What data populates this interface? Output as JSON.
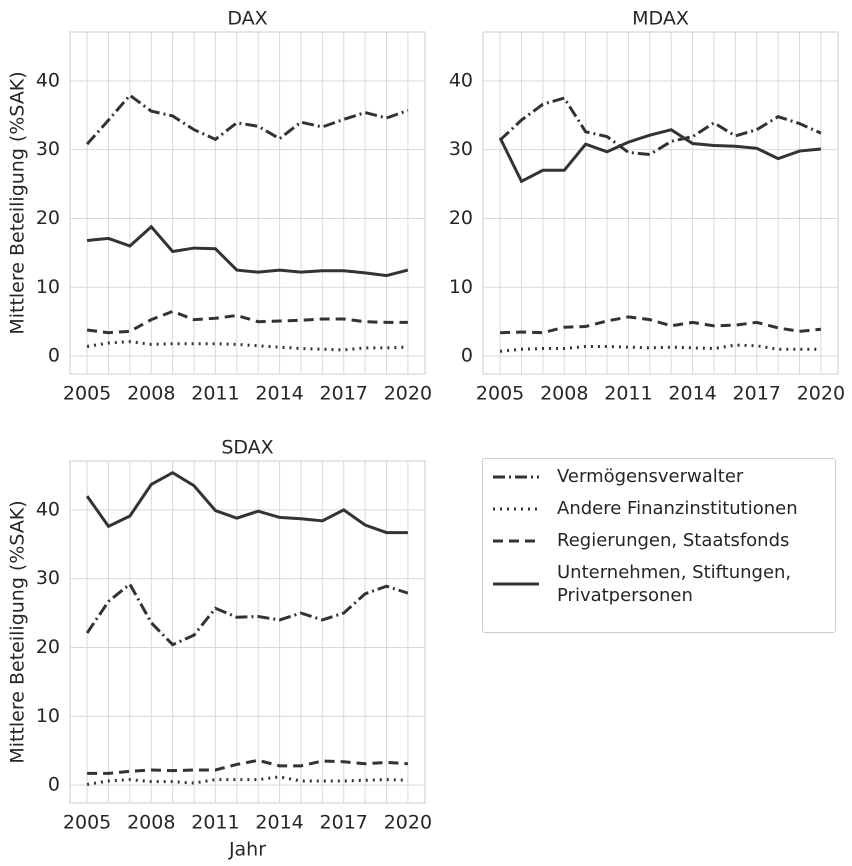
{
  "chart_data": [
    {
      "type": "line",
      "title": "DAX",
      "ylabel": "Mittlere Beteiligung (%SAK)",
      "x": [
        2005,
        2006,
        2007,
        2008,
        2009,
        2010,
        2011,
        2012,
        2013,
        2014,
        2015,
        2016,
        2017,
        2018,
        2019,
        2020
      ],
      "series": [
        {
          "name": "Vermögensverwalter",
          "color": "#333333",
          "dash": "dashdot",
          "values": [
            30.8,
            34.3,
            37.9,
            35.6,
            34.9,
            32.9,
            31.5,
            33.9,
            33.4,
            31.6,
            34.0,
            33.3,
            34.4,
            35.4,
            34.6,
            35.7
          ]
        },
        {
          "name": "Andere Finanzinstitutionen",
          "color": "#333333",
          "dash": "dotted",
          "values": [
            1.4,
            1.9,
            2.1,
            1.7,
            1.8,
            1.8,
            1.8,
            1.7,
            1.5,
            1.3,
            1.1,
            1.0,
            0.9,
            1.2,
            1.2,
            1.3
          ]
        },
        {
          "name": "Regierungen, Staatsfonds",
          "color": "#333333",
          "dash": "dashed",
          "values": [
            3.8,
            3.4,
            3.6,
            5.3,
            6.5,
            5.3,
            5.5,
            5.9,
            5.0,
            5.1,
            5.2,
            5.4,
            5.4,
            5.0,
            4.9,
            4.9
          ]
        },
        {
          "name": "Unternehmen, Stiftungen, Privatpersonen",
          "color": "#333333",
          "dash": "solid",
          "values": [
            16.8,
            17.1,
            16.0,
            18.8,
            15.2,
            15.7,
            15.6,
            12.5,
            12.2,
            12.5,
            12.2,
            12.4,
            12.4,
            12.1,
            11.7,
            12.5
          ]
        }
      ],
      "xlim": [
        2004.2,
        2020.8
      ],
      "ylim": [
        -2.6,
        47.1
      ],
      "xticks": [
        2005,
        2008,
        2011,
        2014,
        2017,
        2020
      ],
      "yticks": [
        0,
        10,
        20,
        30,
        40
      ],
      "grid": true
    },
    {
      "type": "line",
      "title": "MDAX",
      "x": [
        2005,
        2006,
        2007,
        2008,
        2009,
        2010,
        2011,
        2012,
        2013,
        2014,
        2015,
        2016,
        2017,
        2018,
        2019,
        2020
      ],
      "series": [
        {
          "color": "#333333",
          "dash": "dashdot",
          "values": [
            31.4,
            34.3,
            36.6,
            37.5,
            32.6,
            31.9,
            29.6,
            29.3,
            31.2,
            31.9,
            33.9,
            32.0,
            32.9,
            34.8,
            33.8,
            32.4
          ]
        },
        {
          "color": "#333333",
          "dash": "dotted",
          "values": [
            0.7,
            1.0,
            1.1,
            1.1,
            1.4,
            1.4,
            1.3,
            1.2,
            1.3,
            1.2,
            1.1,
            1.6,
            1.5,
            1.0,
            1.0,
            1.0
          ]
        },
        {
          "color": "#333333",
          "dash": "dashed",
          "values": [
            3.4,
            3.5,
            3.4,
            4.2,
            4.3,
            5.1,
            5.7,
            5.3,
            4.4,
            4.9,
            4.4,
            4.5,
            4.9,
            4.1,
            3.6,
            3.9
          ]
        },
        {
          "color": "#333333",
          "dash": "solid",
          "values": [
            31.7,
            25.4,
            27.0,
            27.0,
            30.8,
            29.7,
            31.1,
            32.1,
            32.9,
            30.9,
            30.6,
            30.5,
            30.2,
            28.7,
            29.8,
            30.1
          ]
        }
      ],
      "xlim": [
        2004.2,
        2020.8
      ],
      "ylim": [
        -2.6,
        47.1
      ],
      "xticks": [
        2005,
        2008,
        2011,
        2014,
        2017,
        2020
      ],
      "yticks": [
        0,
        10,
        20,
        30,
        40
      ],
      "grid": true
    },
    {
      "type": "line",
      "title": "SDAX",
      "ylabel": "Mittlere Beteiligung (%SAK)",
      "xlabel": "Jahr",
      "x": [
        2005,
        2006,
        2007,
        2008,
        2009,
        2010,
        2011,
        2012,
        2013,
        2014,
        2015,
        2016,
        2017,
        2018,
        2019,
        2020
      ],
      "series": [
        {
          "color": "#333333",
          "dash": "dashdot",
          "values": [
            22.1,
            26.7,
            29.2,
            23.6,
            20.4,
            21.8,
            25.7,
            24.4,
            24.5,
            24.0,
            25.0,
            24.0,
            25.0,
            27.8,
            28.9,
            27.9
          ]
        },
        {
          "color": "#333333",
          "dash": "dotted",
          "values": [
            0.1,
            0.6,
            0.8,
            0.5,
            0.5,
            0.3,
            0.8,
            0.8,
            0.8,
            1.2,
            0.6,
            0.6,
            0.6,
            0.7,
            0.8,
            0.7
          ]
        },
        {
          "color": "#333333",
          "dash": "dashed",
          "values": [
            1.7,
            1.7,
            2.0,
            2.2,
            2.1,
            2.2,
            2.2,
            3.0,
            3.6,
            2.8,
            2.8,
            3.5,
            3.4,
            3.1,
            3.3,
            3.1
          ]
        },
        {
          "color": "#333333",
          "dash": "solid",
          "values": [
            42.0,
            37.6,
            39.1,
            43.7,
            45.4,
            43.5,
            39.9,
            38.8,
            39.8,
            38.9,
            38.7,
            38.4,
            40.0,
            37.8,
            36.7,
            36.7
          ]
        }
      ],
      "xlim": [
        2004.2,
        2020.8
      ],
      "ylim": [
        -2.6,
        47.1
      ],
      "xticks": [
        2005,
        2008,
        2011,
        2014,
        2017,
        2020
      ],
      "yticks": [
        0,
        10,
        20,
        30,
        40
      ],
      "grid": true
    }
  ]
}
